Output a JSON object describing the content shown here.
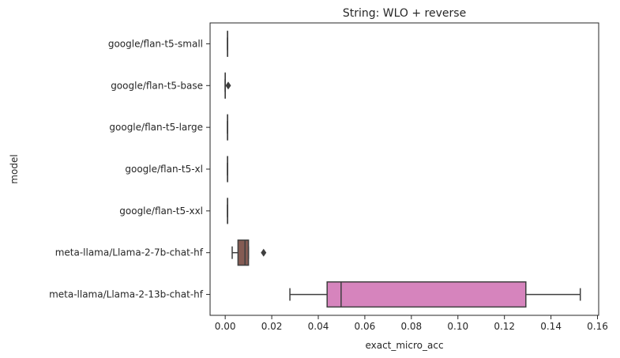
{
  "chart_data": {
    "type": "box",
    "orientation": "horizontal",
    "title": "String: WLO + reverse",
    "xlabel": "exact_micro_acc",
    "ylabel": "model",
    "xlim": [
      -0.0065,
      0.1605
    ],
    "xticks": [
      0.0,
      0.02,
      0.04,
      0.06,
      0.08,
      0.1,
      0.12,
      0.14,
      0.16
    ],
    "xtick_labels": [
      "0.00",
      "0.02",
      "0.04",
      "0.06",
      "0.08",
      "0.10",
      "0.12",
      "0.14",
      "0.16"
    ],
    "grid": false,
    "legend": "none",
    "categories": [
      "google/flan-t5-small",
      "google/flan-t5-base",
      "google/flan-t5-large",
      "google/flan-t5-xl",
      "google/flan-t5-xxl",
      "meta-llama/Llama-2-7b-chat-hf",
      "meta-llama/Llama-2-13b-chat-hf"
    ],
    "boxes": [
      {
        "whisker_low": 0.001,
        "q1": 0.001,
        "median": 0.001,
        "q3": 0.001,
        "whisker_high": 0.001,
        "outliers": [],
        "color": "#3274a1"
      },
      {
        "whisker_low": 0.0,
        "q1": 0.0,
        "median": 0.0,
        "q3": 0.0,
        "whisker_high": 0.0,
        "outliers": [
          0.0013
        ],
        "color": "#e1812c"
      },
      {
        "whisker_low": 0.001,
        "q1": 0.001,
        "median": 0.001,
        "q3": 0.001,
        "whisker_high": 0.001,
        "outliers": [],
        "color": "#3a923a"
      },
      {
        "whisker_low": 0.001,
        "q1": 0.001,
        "median": 0.001,
        "q3": 0.001,
        "whisker_high": 0.001,
        "outliers": [],
        "color": "#c03d3e"
      },
      {
        "whisker_low": 0.001,
        "q1": 0.001,
        "median": 0.001,
        "q3": 0.001,
        "whisker_high": 0.001,
        "outliers": [],
        "color": "#9372b2"
      },
      {
        "whisker_low": 0.003,
        "q1": 0.0055,
        "median": 0.0085,
        "q3": 0.01,
        "whisker_high": 0.01,
        "outliers": [
          0.0165
        ],
        "color": "#845b53"
      },
      {
        "whisker_low": 0.0278,
        "q1": 0.0438,
        "median": 0.0498,
        "q3": 0.1292,
        "whisker_high": 0.1526,
        "outliers": [],
        "color": "#d684bd"
      }
    ]
  }
}
